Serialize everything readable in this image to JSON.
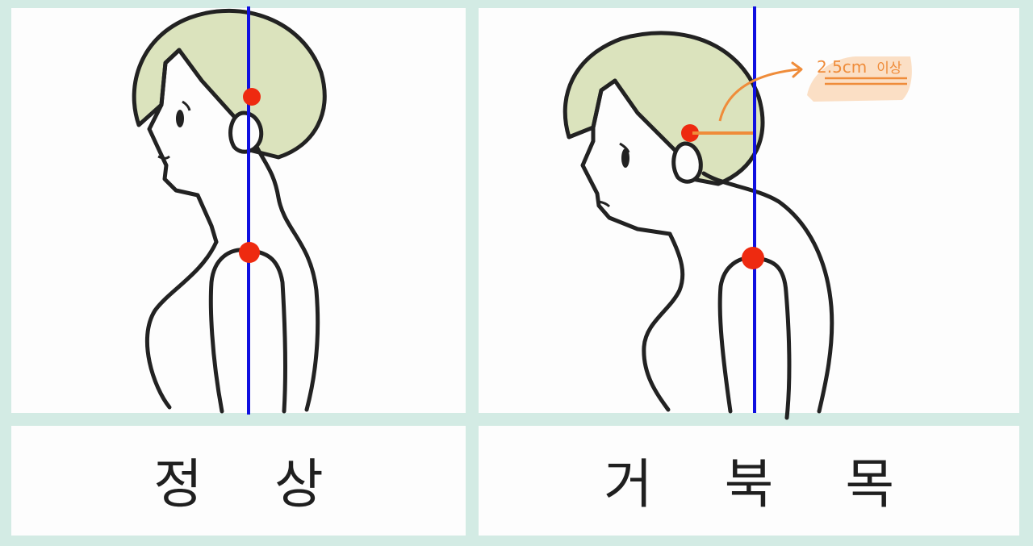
{
  "panels": [
    {
      "caption": "정 상"
    },
    {
      "caption": "거 북 목"
    }
  ],
  "annotation": {
    "value": "2.5cm",
    "suffix": "이상"
  },
  "colors": {
    "grid": "#d3ebe4",
    "plumb_line": "#1010e0",
    "marker": "#ee2a10",
    "hair": "#dbe3bd",
    "outline": "#222222",
    "annotation": "#ef8c3a",
    "annotation_highlight": "#fbdcbf"
  }
}
